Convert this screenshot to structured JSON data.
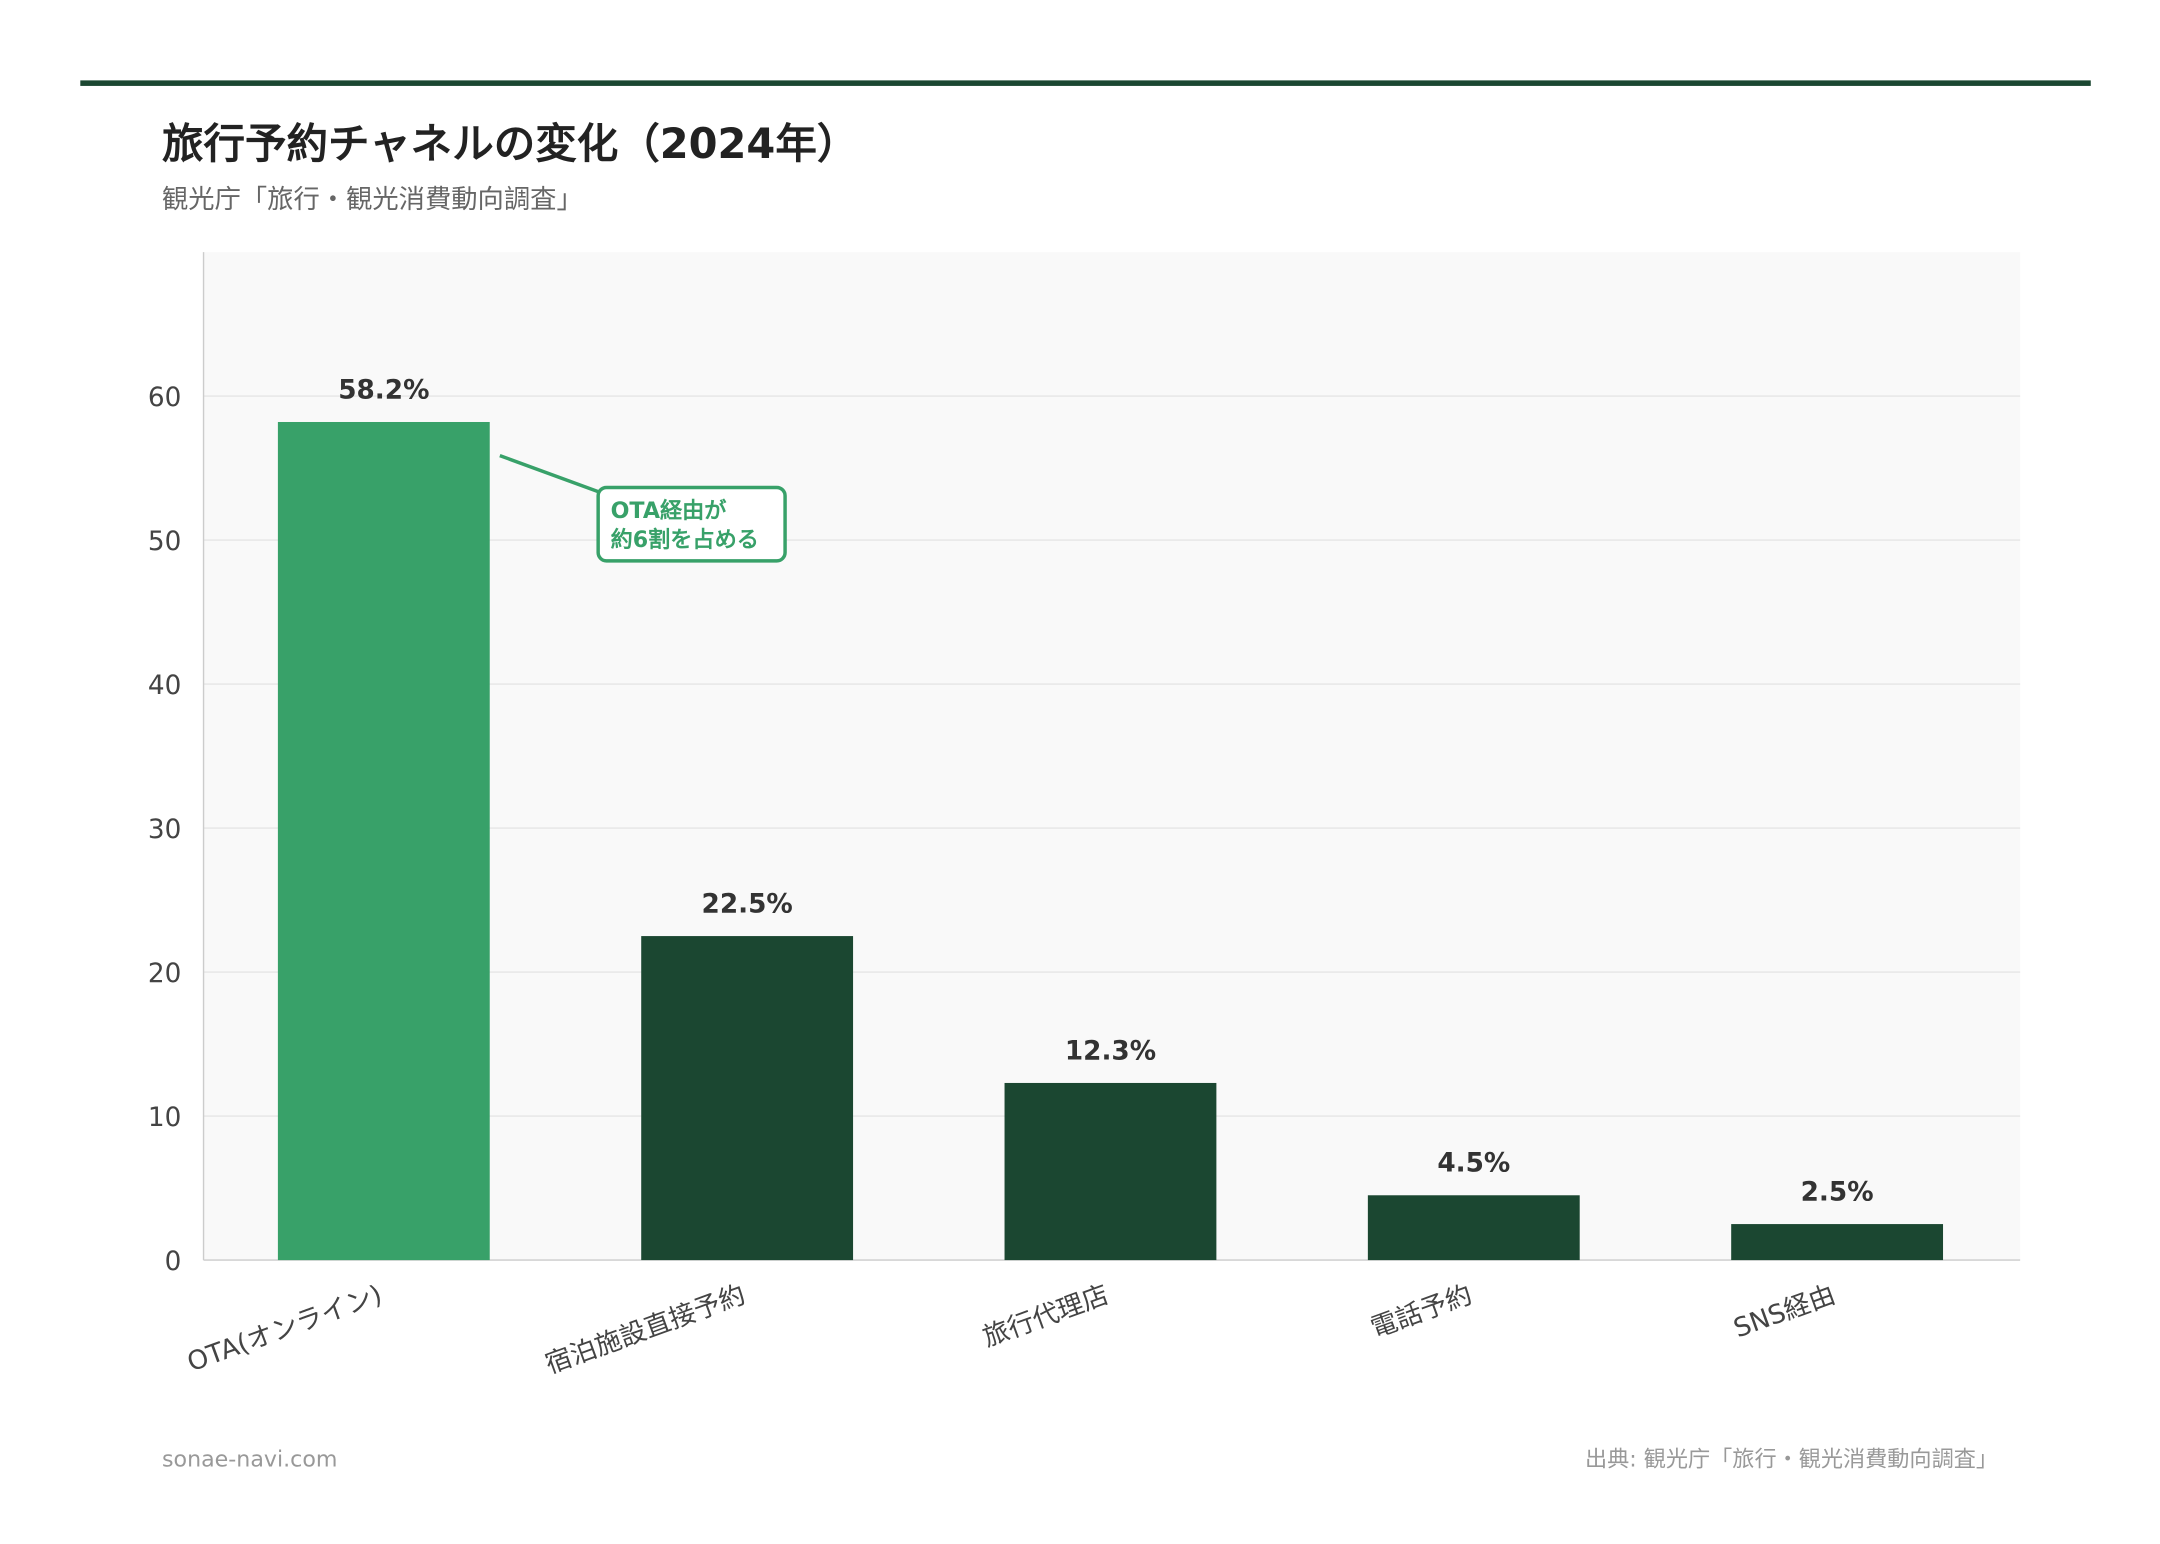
{
  "header": {
    "title": "旅行予約チャネルの変化（2024年）",
    "subtitle": "観光庁「旅行・観光消費動向調査」"
  },
  "footer": {
    "site": "sonae-navi.com",
    "source": "出典: 観光庁「旅行・観光消費動向調査」"
  },
  "colors": {
    "accent_bar": "#38a169",
    "bar": "#1b4731",
    "top_rule": "#1b4731",
    "plot_bg": "#f9f9f9"
  },
  "chart_data": {
    "type": "bar",
    "title": "旅行予約チャネルの変化（2024年）",
    "subtitle": "観光庁「旅行・観光消費動向調査」",
    "categories": [
      "OTA(オンライン)",
      "宿泊施設直接予約",
      "旅行代理店",
      "電話予約",
      "SNS経由"
    ],
    "values": [
      58.2,
      22.5,
      12.3,
      4.5,
      2.5
    ],
    "data_labels": [
      "58.2%",
      "22.5%",
      "12.3%",
      "4.5%",
      "2.5%"
    ],
    "highlight_index": 0,
    "ylim": [
      0,
      70
    ],
    "yticks": [
      0,
      10,
      20,
      30,
      40,
      50,
      60
    ],
    "grid": true,
    "xlabel": "",
    "ylabel": "",
    "annotation": {
      "lines": [
        "OTA経由が",
        "約6割を占める"
      ],
      "target_category": "OTA(オンライン)"
    }
  }
}
